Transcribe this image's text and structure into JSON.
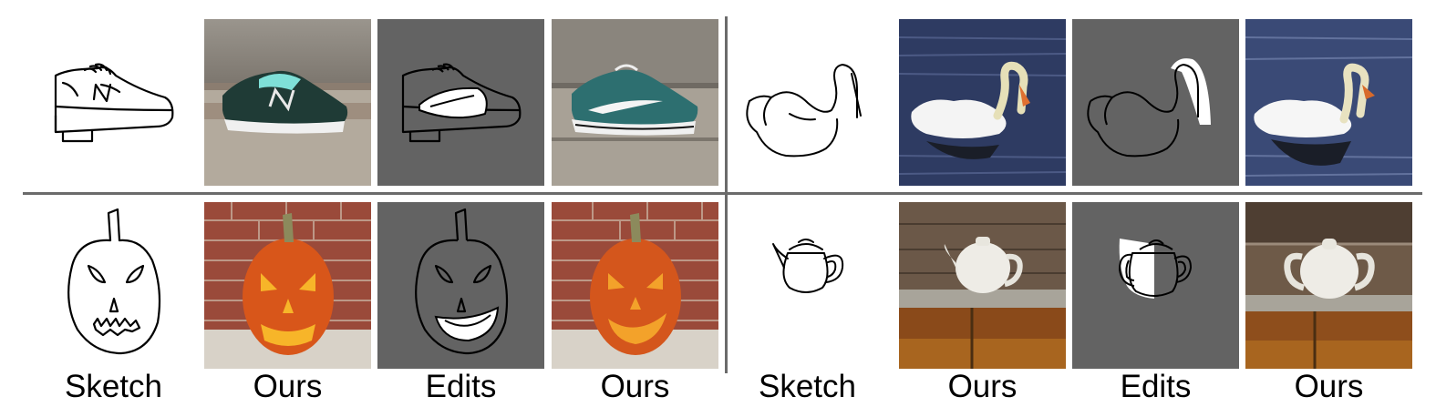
{
  "figure": {
    "column_labels": [
      "Sketch",
      "Ours",
      "Edits",
      "Ours",
      "Sketch",
      "Ours",
      "Edits",
      "Ours"
    ],
    "colors": {
      "divider": "#6b6b6b",
      "edit_background": "#636363",
      "edit_mask": "#ffffff",
      "sketch_stroke": "#000000"
    },
    "panels": [
      {
        "subject": "sneaker",
        "images": [
          "sneaker-sketch",
          "sneaker-result",
          "sneaker-edit",
          "sneaker-edited-result"
        ]
      },
      {
        "subject": "swan",
        "images": [
          "swan-sketch",
          "swan-result",
          "swan-edit",
          "swan-edited-result"
        ]
      },
      {
        "subject": "pumpkin",
        "images": [
          "pumpkin-sketch",
          "pumpkin-result",
          "pumpkin-edit",
          "pumpkin-edited-result"
        ]
      },
      {
        "subject": "teapot",
        "images": [
          "teapot-sketch",
          "teapot-result",
          "teapot-edit",
          "teapot-edited-result"
        ]
      }
    ]
  }
}
